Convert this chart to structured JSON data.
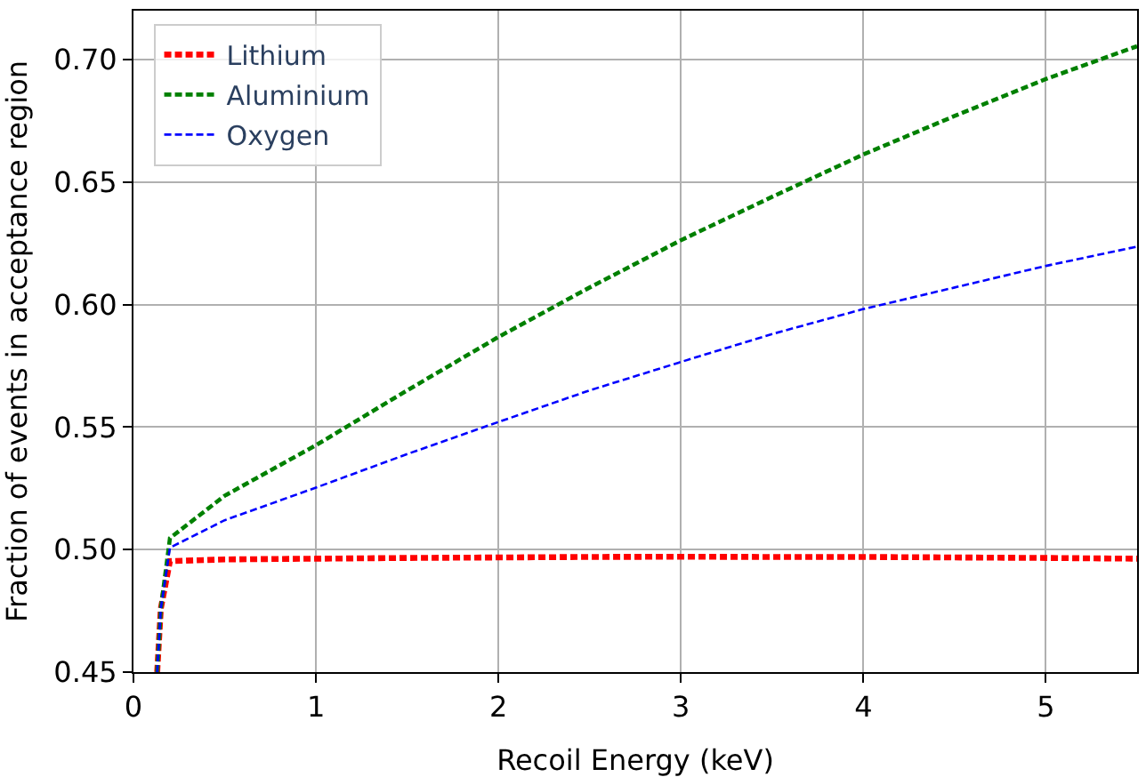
{
  "chart_data": {
    "type": "line",
    "xlabel": "Recoil Energy (keV)",
    "ylabel": "Fraction of events in acceptance region",
    "x": [
      0.13,
      0.15,
      0.2,
      0.5,
      1,
      1.5,
      2,
      2.5,
      3,
      3.5,
      4,
      4.5,
      5,
      5.5
    ],
    "series": [
      {
        "name": "Lithium",
        "color": "#ff0000",
        "values": [
          0.45,
          0.476,
          0.4953,
          0.496,
          0.4963,
          0.4966,
          0.4968,
          0.497,
          0.4971,
          0.497,
          0.497,
          0.4968,
          0.4966,
          0.4963
        ]
      },
      {
        "name": "Aluminium",
        "color": "#008000",
        "values": [
          0.45,
          0.476,
          0.5047,
          0.522,
          0.5426,
          0.565,
          0.5868,
          0.607,
          0.6263,
          0.644,
          0.6613,
          0.677,
          0.6921,
          0.7055
        ]
      },
      {
        "name": "Oxygen",
        "color": "#0000ff",
        "values": [
          0.45,
          0.476,
          0.5008,
          0.512,
          0.5253,
          0.539,
          0.5521,
          0.565,
          0.5766,
          0.588,
          0.5982,
          0.607,
          0.6158,
          0.6237
        ]
      }
    ],
    "xlim": [
      0,
      5.5
    ],
    "ylim": [
      0.45,
      0.72
    ],
    "xticks": [
      0,
      1,
      2,
      3,
      4,
      5
    ],
    "yticks": [
      {
        "value": 0.45,
        "label": "0.45"
      },
      {
        "value": 0.5,
        "label": "0.50"
      },
      {
        "value": 0.55,
        "label": "0.55"
      },
      {
        "value": 0.6,
        "label": "0.60"
      },
      {
        "value": 0.65,
        "label": "0.65"
      },
      {
        "value": 0.7,
        "label": "0.70"
      }
    ],
    "grid": true,
    "legend": "top left",
    "line_style": "dashed",
    "marker": "none"
  }
}
